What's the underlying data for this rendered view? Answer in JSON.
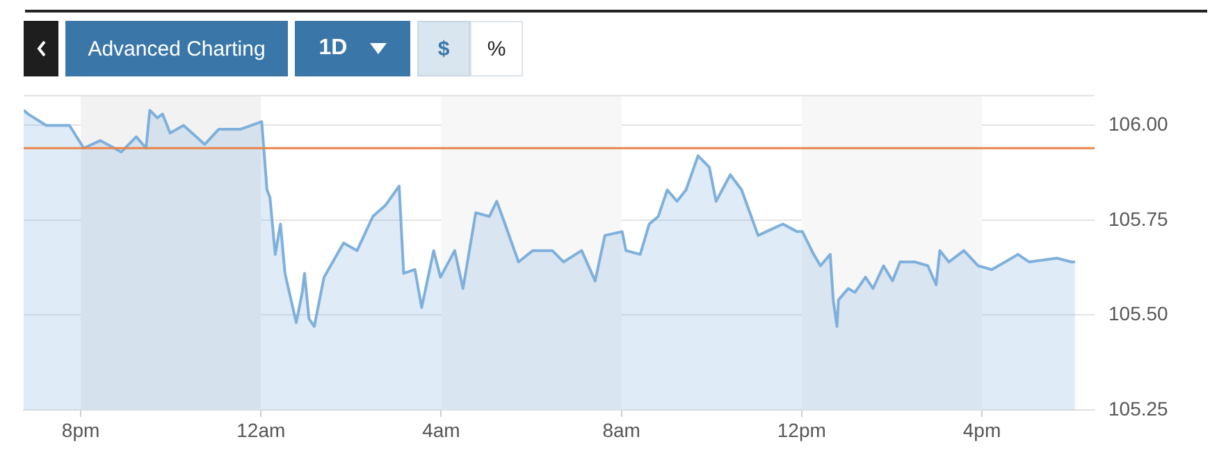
{
  "chart_data": {
    "type": "area",
    "annotations": [
      "Advanced Charting",
      "1D",
      "$",
      "%"
    ],
    "x": [
      "--01-01T18:44",
      "--01-01T18:50",
      "--01-01T19:14",
      "--01-01T19:45",
      "--01-01T20:04",
      "--01-01T20:26",
      "--01-01T20:54",
      "--01-01T21:14",
      "--01-01T21:27",
      "--01-01T21:32",
      "--01-01T21:42",
      "--01-01T21:49",
      "--01-01T21:59",
      "--01-01T22:17",
      "--01-01T22:45",
      "--01-01T23:04",
      "--01-01T23:33",
      "--01-02T00:01",
      "--01-02T00:08",
      "--01-02T00:12",
      "--01-02T00:19",
      "--01-02T00:26",
      "--01-02T00:32",
      "--01-02T00:47",
      "--01-02T00:55",
      "--01-02T00:58",
      "--01-02T01:04",
      "--01-02T01:11",
      "--01-02T01:24",
      "--01-02T01:50",
      "--01-02T02:08",
      "--01-02T02:29",
      "--01-02T02:46",
      "--01-02T03:04",
      "--01-02T03:10",
      "--01-02T03:25",
      "--01-02T03:34",
      "--01-02T03:50",
      "--01-02T03:59",
      "--01-02T04:18",
      "--01-02T04:29",
      "--01-02T04:46",
      "--01-02T05:04",
      "--01-02T05:14",
      "--01-02T05:25",
      "--01-02T05:43",
      "--01-02T06:02",
      "--01-02T06:28",
      "--01-02T06:43",
      "--01-02T07:07",
      "--01-02T07:25",
      "--01-02T07:38",
      "--01-02T08:01",
      "--01-02T08:06",
      "--01-02T08:25",
      "--01-02T08:37",
      "--01-02T08:49",
      "--01-02T09:01",
      "--01-02T09:14",
      "--01-02T09:26",
      "--01-02T09:42",
      "--01-02T09:57",
      "--01-02T10:06",
      "--01-02T10:25",
      "--01-02T10:40",
      "--01-02T11:02",
      "--01-02T11:24",
      "--01-02T11:35",
      "--01-02T11:54",
      "--01-02T12:01",
      "--01-02T12:16",
      "--01-02T12:25",
      "--01-02T12:38",
      "--01-02T12:42",
      "--01-02T12:47",
      "--01-02T12:49",
      "--01-02T13:02",
      "--01-02T13:11",
      "--01-02T13:25",
      "--01-02T13:35",
      "--01-02T13:49",
      "--01-02T14:01",
      "--01-02T14:11",
      "--01-02T14:31",
      "--01-02T14:48",
      "--01-02T14:59",
      "--01-02T15:04",
      "--01-02T15:16",
      "--01-02T15:36",
      "--01-02T15:55",
      "--01-02T16:13",
      "--01-02T16:31",
      "--01-02T16:48",
      "--01-02T17:03",
      "--01-02T17:40",
      "--01-02T17:59",
      "--01-02T18:04"
    ],
    "series": [
      {
        "color": "#7fb0dc",
        "values": [
          106.04,
          106.03,
          106.0,
          106.0,
          105.94,
          105.96,
          105.93,
          105.97,
          105.94,
          106.04,
          106.02,
          106.03,
          105.98,
          106.0,
          105.95,
          105.99,
          105.99,
          106.01,
          105.83,
          105.81,
          105.66,
          105.74,
          105.61,
          105.48,
          105.56,
          105.61,
          105.49,
          105.47,
          105.6,
          105.69,
          105.67,
          105.76,
          105.79,
          105.84,
          105.61,
          105.62,
          105.52,
          105.67,
          105.6,
          105.67,
          105.57,
          105.77,
          105.76,
          105.8,
          105.74,
          105.64,
          105.67,
          105.67,
          105.64,
          105.67,
          105.59,
          105.71,
          105.72,
          105.67,
          105.66,
          105.74,
          105.76,
          105.83,
          105.8,
          105.83,
          105.92,
          105.89,
          105.8,
          105.87,
          105.83,
          105.71,
          105.73,
          105.74,
          105.72,
          105.72,
          105.66,
          105.63,
          105.66,
          105.54,
          105.47,
          105.54,
          105.57,
          105.56,
          105.6,
          105.57,
          105.63,
          105.59,
          105.64,
          105.64,
          105.63,
          105.58,
          105.67,
          105.64,
          105.67,
          105.63,
          105.62,
          105.64,
          105.66,
          105.64,
          105.65,
          105.64,
          105.64
        ]
      }
    ],
    "xlim": [
      "--01-01T18:44",
      "--01-02T18:30"
    ],
    "xticks": [
      {
        "value": "--01-01T20:00",
        "label": "8pm"
      },
      {
        "value": "--01-02T00:00",
        "label": "12am"
      },
      {
        "value": "--01-02T04:00",
        "label": "4am"
      },
      {
        "value": "--01-02T08:00",
        "label": "8am"
      },
      {
        "value": "--01-02T12:00",
        "label": "12pm"
      },
      {
        "value": "--01-02T16:00",
        "label": "4pm"
      }
    ],
    "ylim": [
      105.25,
      106.08
    ],
    "yticks": [
      {
        "value": 105.25,
        "label": "105.25"
      },
      {
        "value": 105.5,
        "label": "105.50"
      },
      {
        "value": 105.75,
        "label": "105.75"
      },
      {
        "value": 106,
        "label": "106.00"
      }
    ],
    "ref_lines": [
      {
        "axis": "y",
        "value": 105.94,
        "color": "#e8834a"
      }
    ],
    "bands": [
      {
        "axis": "x",
        "from": "--01-01T20:00",
        "to": "--01-02T00:00",
        "color": "#f2f2f2"
      },
      {
        "axis": "x",
        "from": "--01-02T04:00",
        "to": "--01-02T08:00",
        "color": "#f7f7f7"
      },
      {
        "axis": "x",
        "from": "--01-02T12:00",
        "to": "--01-02T16:00",
        "color": "#f7f7f7"
      }
    ],
    "grid": "y"
  }
}
